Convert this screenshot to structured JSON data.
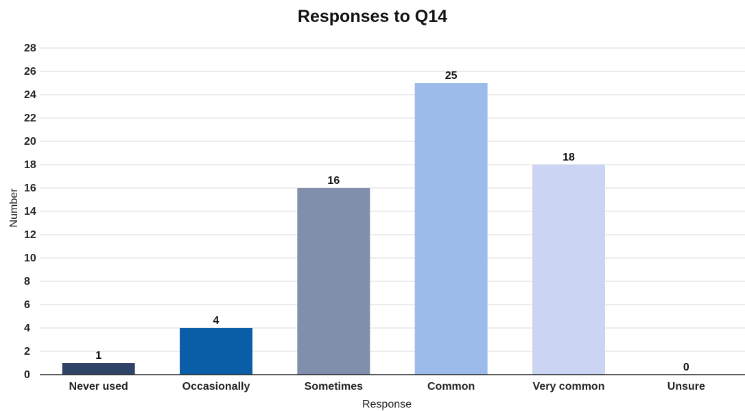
{
  "chart_data": {
    "type": "bar",
    "title": "Responses to Q14",
    "xlabel": "Response",
    "ylabel": "Number",
    "categories": [
      "Never used",
      "Occasionally",
      "Sometimes",
      "Common",
      "Very common",
      "Unsure"
    ],
    "values": [
      1,
      4,
      16,
      25,
      18,
      0
    ],
    "colors": [
      "#2f4268",
      "#0a5ea8",
      "#8090ac",
      "#9dbbea",
      "#cbd5f3",
      "#cbd5f3"
    ],
    "ylim": [
      0,
      28
    ],
    "yticks": [
      0,
      2,
      4,
      6,
      8,
      10,
      12,
      14,
      16,
      18,
      20,
      22,
      24,
      26,
      28
    ],
    "grid": true,
    "legend": "none"
  }
}
